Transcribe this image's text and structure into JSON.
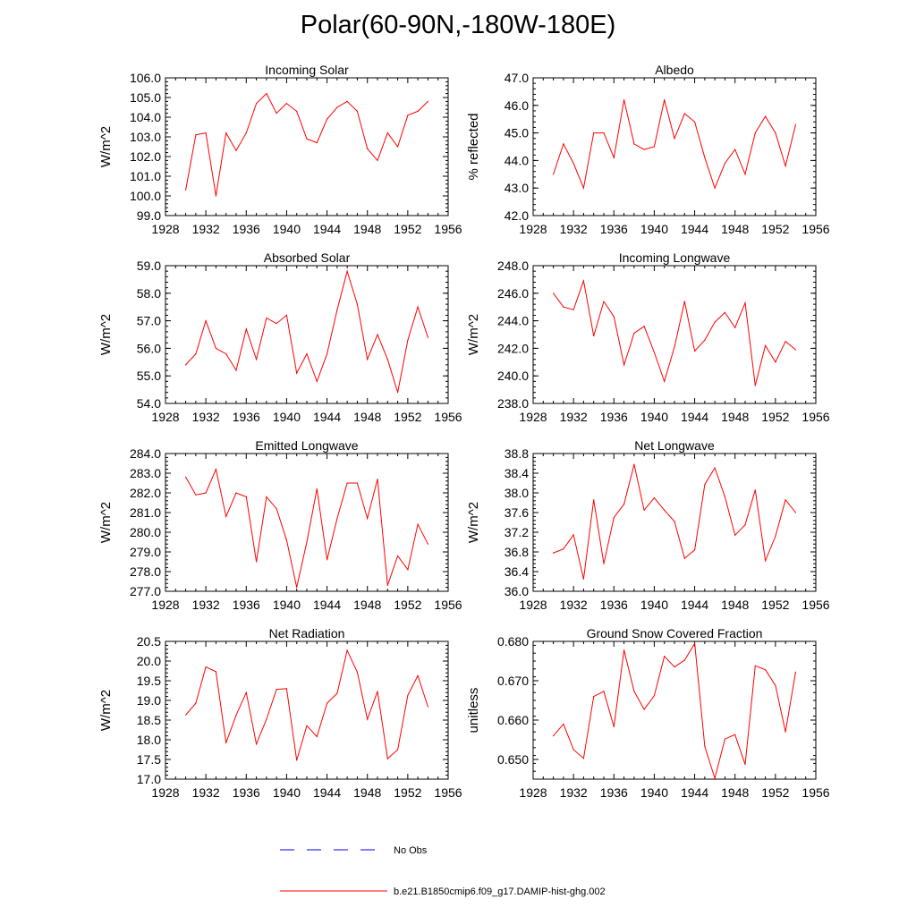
{
  "title": "Polar(60-90N,-180W-180E)",
  "colors": {
    "model": "#ff0000",
    "obs": "#0000ff"
  },
  "legend": {
    "obs_label": "No Obs",
    "model_label": "b.e21.B1850cmip6.f09_g17.DAMIP-hist-ghg.002"
  },
  "chart_data": [
    {
      "type": "line",
      "title": "Incoming Solar",
      "ylabel": "W/m^2",
      "xlim": [
        1928,
        1956
      ],
      "ylim": [
        99.0,
        106.0
      ],
      "xticks": [
        1928,
        1932,
        1936,
        1940,
        1944,
        1948,
        1952,
        1956
      ],
      "yticks": [
        99.0,
        100.0,
        101.0,
        102.0,
        103.0,
        104.0,
        105.0,
        106.0
      ],
      "ydecimals": 1,
      "x": [
        1930,
        1931,
        1932,
        1933,
        1934,
        1935,
        1936,
        1937,
        1938,
        1939,
        1940,
        1941,
        1942,
        1943,
        1944,
        1945,
        1946,
        1947,
        1948,
        1949,
        1950,
        1951,
        1952,
        1953,
        1954
      ],
      "values": [
        100.3,
        103.1,
        103.2,
        100.0,
        103.2,
        102.3,
        103.2,
        104.7,
        105.2,
        104.2,
        104.7,
        104.3,
        102.9,
        102.7,
        103.9,
        104.5,
        104.8,
        104.3,
        102.4,
        101.8,
        103.2,
        102.5,
        104.1,
        104.3,
        104.8
      ]
    },
    {
      "type": "line",
      "title": "Albedo",
      "ylabel": "% reflected",
      "xlim": [
        1928,
        1956
      ],
      "ylim": [
        42.0,
        47.0
      ],
      "xticks": [
        1928,
        1932,
        1936,
        1940,
        1944,
        1948,
        1952,
        1956
      ],
      "yticks": [
        42.0,
        43.0,
        44.0,
        45.0,
        46.0,
        47.0
      ],
      "ydecimals": 1,
      "x": [
        1930,
        1931,
        1932,
        1933,
        1934,
        1935,
        1936,
        1937,
        1938,
        1939,
        1940,
        1941,
        1942,
        1943,
        1944,
        1945,
        1946,
        1947,
        1948,
        1949,
        1950,
        1951,
        1952,
        1953,
        1954
      ],
      "values": [
        43.5,
        44.6,
        43.9,
        43.0,
        45.0,
        45.0,
        44.1,
        46.2,
        44.6,
        44.4,
        44.5,
        46.2,
        44.8,
        45.7,
        45.4,
        44.1,
        43.0,
        43.9,
        44.4,
        43.5,
        45.0,
        45.6,
        45.0,
        43.8,
        45.3
      ]
    },
    {
      "type": "line",
      "title": "Absorbed Solar",
      "ylabel": "W/m^2",
      "xlim": [
        1928,
        1956
      ],
      "ylim": [
        54.0,
        59.0
      ],
      "xticks": [
        1928,
        1932,
        1936,
        1940,
        1944,
        1948,
        1952,
        1956
      ],
      "yticks": [
        54.0,
        55.0,
        56.0,
        57.0,
        58.0,
        59.0
      ],
      "ydecimals": 1,
      "x": [
        1930,
        1931,
        1932,
        1933,
        1934,
        1935,
        1936,
        1937,
        1938,
        1939,
        1940,
        1941,
        1942,
        1943,
        1944,
        1945,
        1946,
        1947,
        1948,
        1949,
        1950,
        1951,
        1952,
        1953,
        1954
      ],
      "values": [
        55.4,
        55.8,
        57.0,
        56.0,
        55.8,
        55.2,
        56.7,
        55.6,
        57.1,
        56.9,
        57.2,
        55.1,
        55.8,
        54.8,
        55.8,
        57.4,
        58.8,
        57.6,
        55.6,
        56.5,
        55.6,
        54.4,
        56.3,
        57.5,
        56.4
      ]
    },
    {
      "type": "line",
      "title": "Incoming Longwave",
      "ylabel": "W/m^2",
      "xlim": [
        1928,
        1956
      ],
      "ylim": [
        238.0,
        248.0
      ],
      "xticks": [
        1928,
        1932,
        1936,
        1940,
        1944,
        1948,
        1952,
        1956
      ],
      "yticks": [
        238.0,
        240.0,
        242.0,
        244.0,
        246.0,
        248.0
      ],
      "ydecimals": 1,
      "x": [
        1930,
        1931,
        1932,
        1933,
        1934,
        1935,
        1936,
        1937,
        1938,
        1939,
        1940,
        1941,
        1942,
        1943,
        1944,
        1945,
        1946,
        1947,
        1948,
        1949,
        1950,
        1951,
        1952,
        1953,
        1954
      ],
      "values": [
        246.0,
        245.0,
        244.8,
        246.9,
        242.9,
        245.4,
        244.3,
        240.8,
        243.1,
        243.6,
        241.7,
        239.6,
        242.1,
        245.4,
        241.8,
        242.6,
        243.9,
        244.6,
        243.5,
        245.3,
        239.3,
        242.2,
        241.0,
        242.5,
        241.9
      ]
    },
    {
      "type": "line",
      "title": "Emitted Longwave",
      "ylabel": "W/m^2",
      "xlim": [
        1928,
        1956
      ],
      "ylim": [
        277.0,
        284.0
      ],
      "xticks": [
        1928,
        1932,
        1936,
        1940,
        1944,
        1948,
        1952,
        1956
      ],
      "yticks": [
        277.0,
        278.0,
        279.0,
        280.0,
        281.0,
        282.0,
        283.0,
        284.0
      ],
      "ydecimals": 1,
      "x": [
        1930,
        1931,
        1932,
        1933,
        1934,
        1935,
        1936,
        1937,
        1938,
        1939,
        1940,
        1941,
        1942,
        1943,
        1944,
        1945,
        1946,
        1947,
        1948,
        1949,
        1950,
        1951,
        1952,
        1953,
        1954
      ],
      "values": [
        282.8,
        281.9,
        282.0,
        283.2,
        280.8,
        282.0,
        281.8,
        278.5,
        281.8,
        281.2,
        279.6,
        277.2,
        279.5,
        282.2,
        278.6,
        280.7,
        282.5,
        282.5,
        280.7,
        282.7,
        277.3,
        278.8,
        278.1,
        280.4,
        279.4
      ]
    },
    {
      "type": "line",
      "title": "Net Longwave",
      "ylabel": "W/m^2",
      "xlim": [
        1928,
        1956
      ],
      "ylim": [
        36.0,
        38.8
      ],
      "xticks": [
        1928,
        1932,
        1936,
        1940,
        1944,
        1948,
        1952,
        1956
      ],
      "yticks": [
        36.0,
        36.4,
        36.8,
        37.2,
        37.6,
        38.0,
        38.4,
        38.8
      ],
      "ydecimals": 1,
      "x": [
        1930,
        1931,
        1932,
        1933,
        1934,
        1935,
        1936,
        1937,
        1938,
        1939,
        1940,
        1941,
        1942,
        1943,
        1944,
        1945,
        1946,
        1947,
        1948,
        1949,
        1950,
        1951,
        1952,
        1953,
        1954
      ],
      "values": [
        36.78,
        36.86,
        37.15,
        36.25,
        37.86,
        36.56,
        37.5,
        37.77,
        38.58,
        37.65,
        37.9,
        37.65,
        37.42,
        36.67,
        36.84,
        38.17,
        38.51,
        37.92,
        37.14,
        37.35,
        38.06,
        36.62,
        37.12,
        37.86,
        37.6
      ]
    },
    {
      "type": "line",
      "title": "Net Radiation",
      "ylabel": "W/m^2",
      "xlim": [
        1928,
        1956
      ],
      "ylim": [
        17.0,
        20.5
      ],
      "xticks": [
        1928,
        1932,
        1936,
        1940,
        1944,
        1948,
        1952,
        1956
      ],
      "yticks": [
        17.0,
        17.5,
        18.0,
        18.5,
        19.0,
        19.5,
        20.0,
        20.5
      ],
      "ydecimals": 1,
      "x": [
        1930,
        1931,
        1932,
        1933,
        1934,
        1935,
        1936,
        1937,
        1938,
        1939,
        1940,
        1941,
        1942,
        1943,
        1944,
        1945,
        1946,
        1947,
        1948,
        1949,
        1950,
        1951,
        1952,
        1953,
        1954
      ],
      "values": [
        18.63,
        18.93,
        19.85,
        19.73,
        17.92,
        18.63,
        19.2,
        17.89,
        18.52,
        19.28,
        19.3,
        17.48,
        18.36,
        18.08,
        18.93,
        19.18,
        20.27,
        19.72,
        18.52,
        19.23,
        17.52,
        17.75,
        19.13,
        19.63,
        18.84
      ]
    },
    {
      "type": "line",
      "title": "Ground Snow Covered Fraction",
      "ylabel": "unitless",
      "xlim": [
        1928,
        1956
      ],
      "ylim": [
        0.645,
        0.68
      ],
      "xticks": [
        1928,
        1932,
        1936,
        1940,
        1944,
        1948,
        1952,
        1956
      ],
      "yticks": [
        0.65,
        0.66,
        0.67,
        0.68
      ],
      "ydecimals": 3,
      "x": [
        1930,
        1931,
        1932,
        1933,
        1934,
        1935,
        1936,
        1937,
        1938,
        1939,
        1940,
        1941,
        1942,
        1943,
        1944,
        1945,
        1946,
        1947,
        1948,
        1949,
        1950,
        1951,
        1952,
        1953,
        1954
      ],
      "values": [
        0.656,
        0.659,
        0.6525,
        0.6503,
        0.666,
        0.6673,
        0.6583,
        0.6778,
        0.6673,
        0.6627,
        0.6662,
        0.6762,
        0.6735,
        0.6752,
        0.6795,
        0.6533,
        0.6452,
        0.6552,
        0.6563,
        0.6487,
        0.6738,
        0.6728,
        0.6688,
        0.657,
        0.6722
      ]
    }
  ]
}
